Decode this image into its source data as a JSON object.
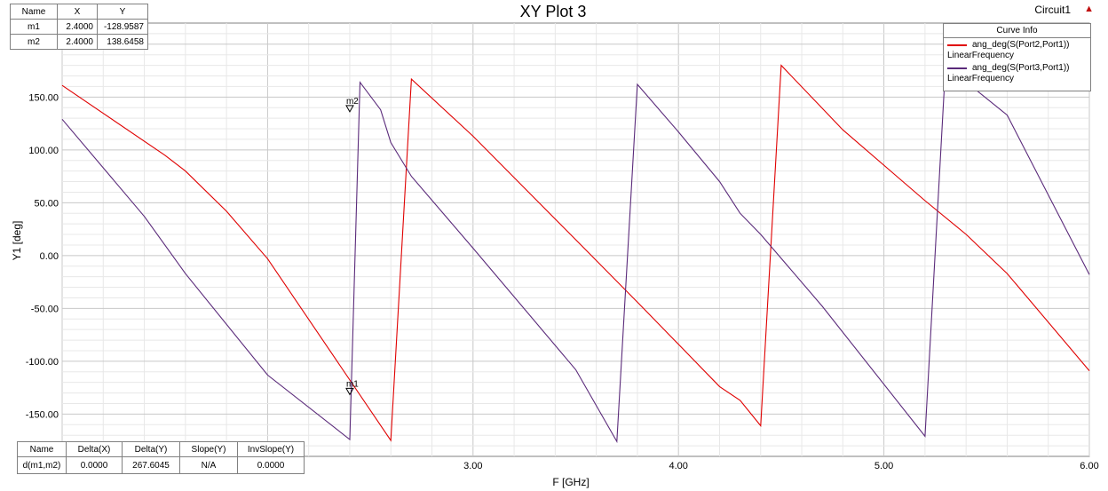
{
  "design_name": "Circuit1",
  "marker_table": {
    "headers": [
      "Name",
      "X",
      "Y"
    ],
    "rows": [
      [
        "m1",
        "2.4000",
        "-128.9587"
      ],
      [
        "m2",
        "2.4000",
        "138.6458"
      ]
    ]
  },
  "delta_table": {
    "headers": [
      "Name",
      "Delta(X)",
      "Delta(Y)",
      "Slope(Y)",
      "InvSlope(Y)"
    ],
    "row": [
      "d(m1,m2)",
      "0.0000",
      "267.6045",
      "N/A",
      "0.0000"
    ]
  },
  "legend": {
    "title": "Curve Info",
    "entries": [
      {
        "name": "ang_deg(S(Port2,Port1))",
        "sub": "LinearFrequency",
        "color": "#e00000"
      },
      {
        "name": "ang_deg(S(Port3,Port1))",
        "sub": "LinearFrequency",
        "color": "#5a2a7a"
      }
    ]
  },
  "colors": {
    "red": "#e00000",
    "purple": "#5a2a7a",
    "grid": "#c8c8c8",
    "grid_minor": "#e8e8e8"
  },
  "chart_data": {
    "type": "line",
    "title": "XY Plot 3",
    "xlabel": "F [GHz]",
    "ylabel": "Y1 [deg]",
    "xlim": [
      1.0,
      6.0
    ],
    "ylim": [
      -190,
      220
    ],
    "xticks": [
      3.0,
      4.0,
      5.0,
      6.0
    ],
    "xtick_labels": [
      "3.00",
      "4.00",
      "5.00",
      "6.00"
    ],
    "yticks": [
      150,
      100,
      50,
      0,
      -50,
      -100,
      -150
    ],
    "ytick_labels": [
      "150.00",
      "100.00",
      "50.00",
      "0.00",
      "-50.00",
      "-100.00",
      "-150.00"
    ],
    "grid": true,
    "series": [
      {
        "name": "ang_deg(S(Port2,Port1))",
        "color": "#e00000",
        "x": [
          1.0,
          1.5,
          1.6,
          1.8,
          2.0,
          2.6,
          2.7,
          3.0,
          3.5,
          3.8,
          4.0,
          4.2,
          4.3,
          4.4,
          4.5,
          4.8,
          5.2,
          5.4,
          5.6,
          6.0
        ],
        "y": [
          161,
          95,
          80,
          42,
          -3,
          -175,
          167,
          113,
          15,
          -44,
          -84,
          -124,
          -137,
          -161,
          180,
          119,
          52,
          20,
          -17,
          -109
        ]
      },
      {
        "name": "ang_deg(S(Port3,Port1))",
        "color": "#5a2a7a",
        "x": [
          1.0,
          1.4,
          1.6,
          2.0,
          2.4,
          2.45,
          2.55,
          2.6,
          2.7,
          3.0,
          3.5,
          3.7,
          3.8,
          4.0,
          4.2,
          4.3,
          4.4,
          4.7,
          5.2,
          5.3,
          5.6,
          6.0
        ],
        "y": [
          129,
          37,
          -17,
          -113,
          -174,
          164,
          138,
          107,
          75,
          7,
          -108,
          -176,
          162,
          117,
          70,
          40,
          20,
          -48,
          -171,
          180,
          133,
          -18
        ]
      }
    ],
    "markers": [
      {
        "name": "m1",
        "x": 2.4,
        "y": -128.9587
      },
      {
        "name": "m2",
        "x": 2.4,
        "y": 138.6458
      }
    ]
  }
}
